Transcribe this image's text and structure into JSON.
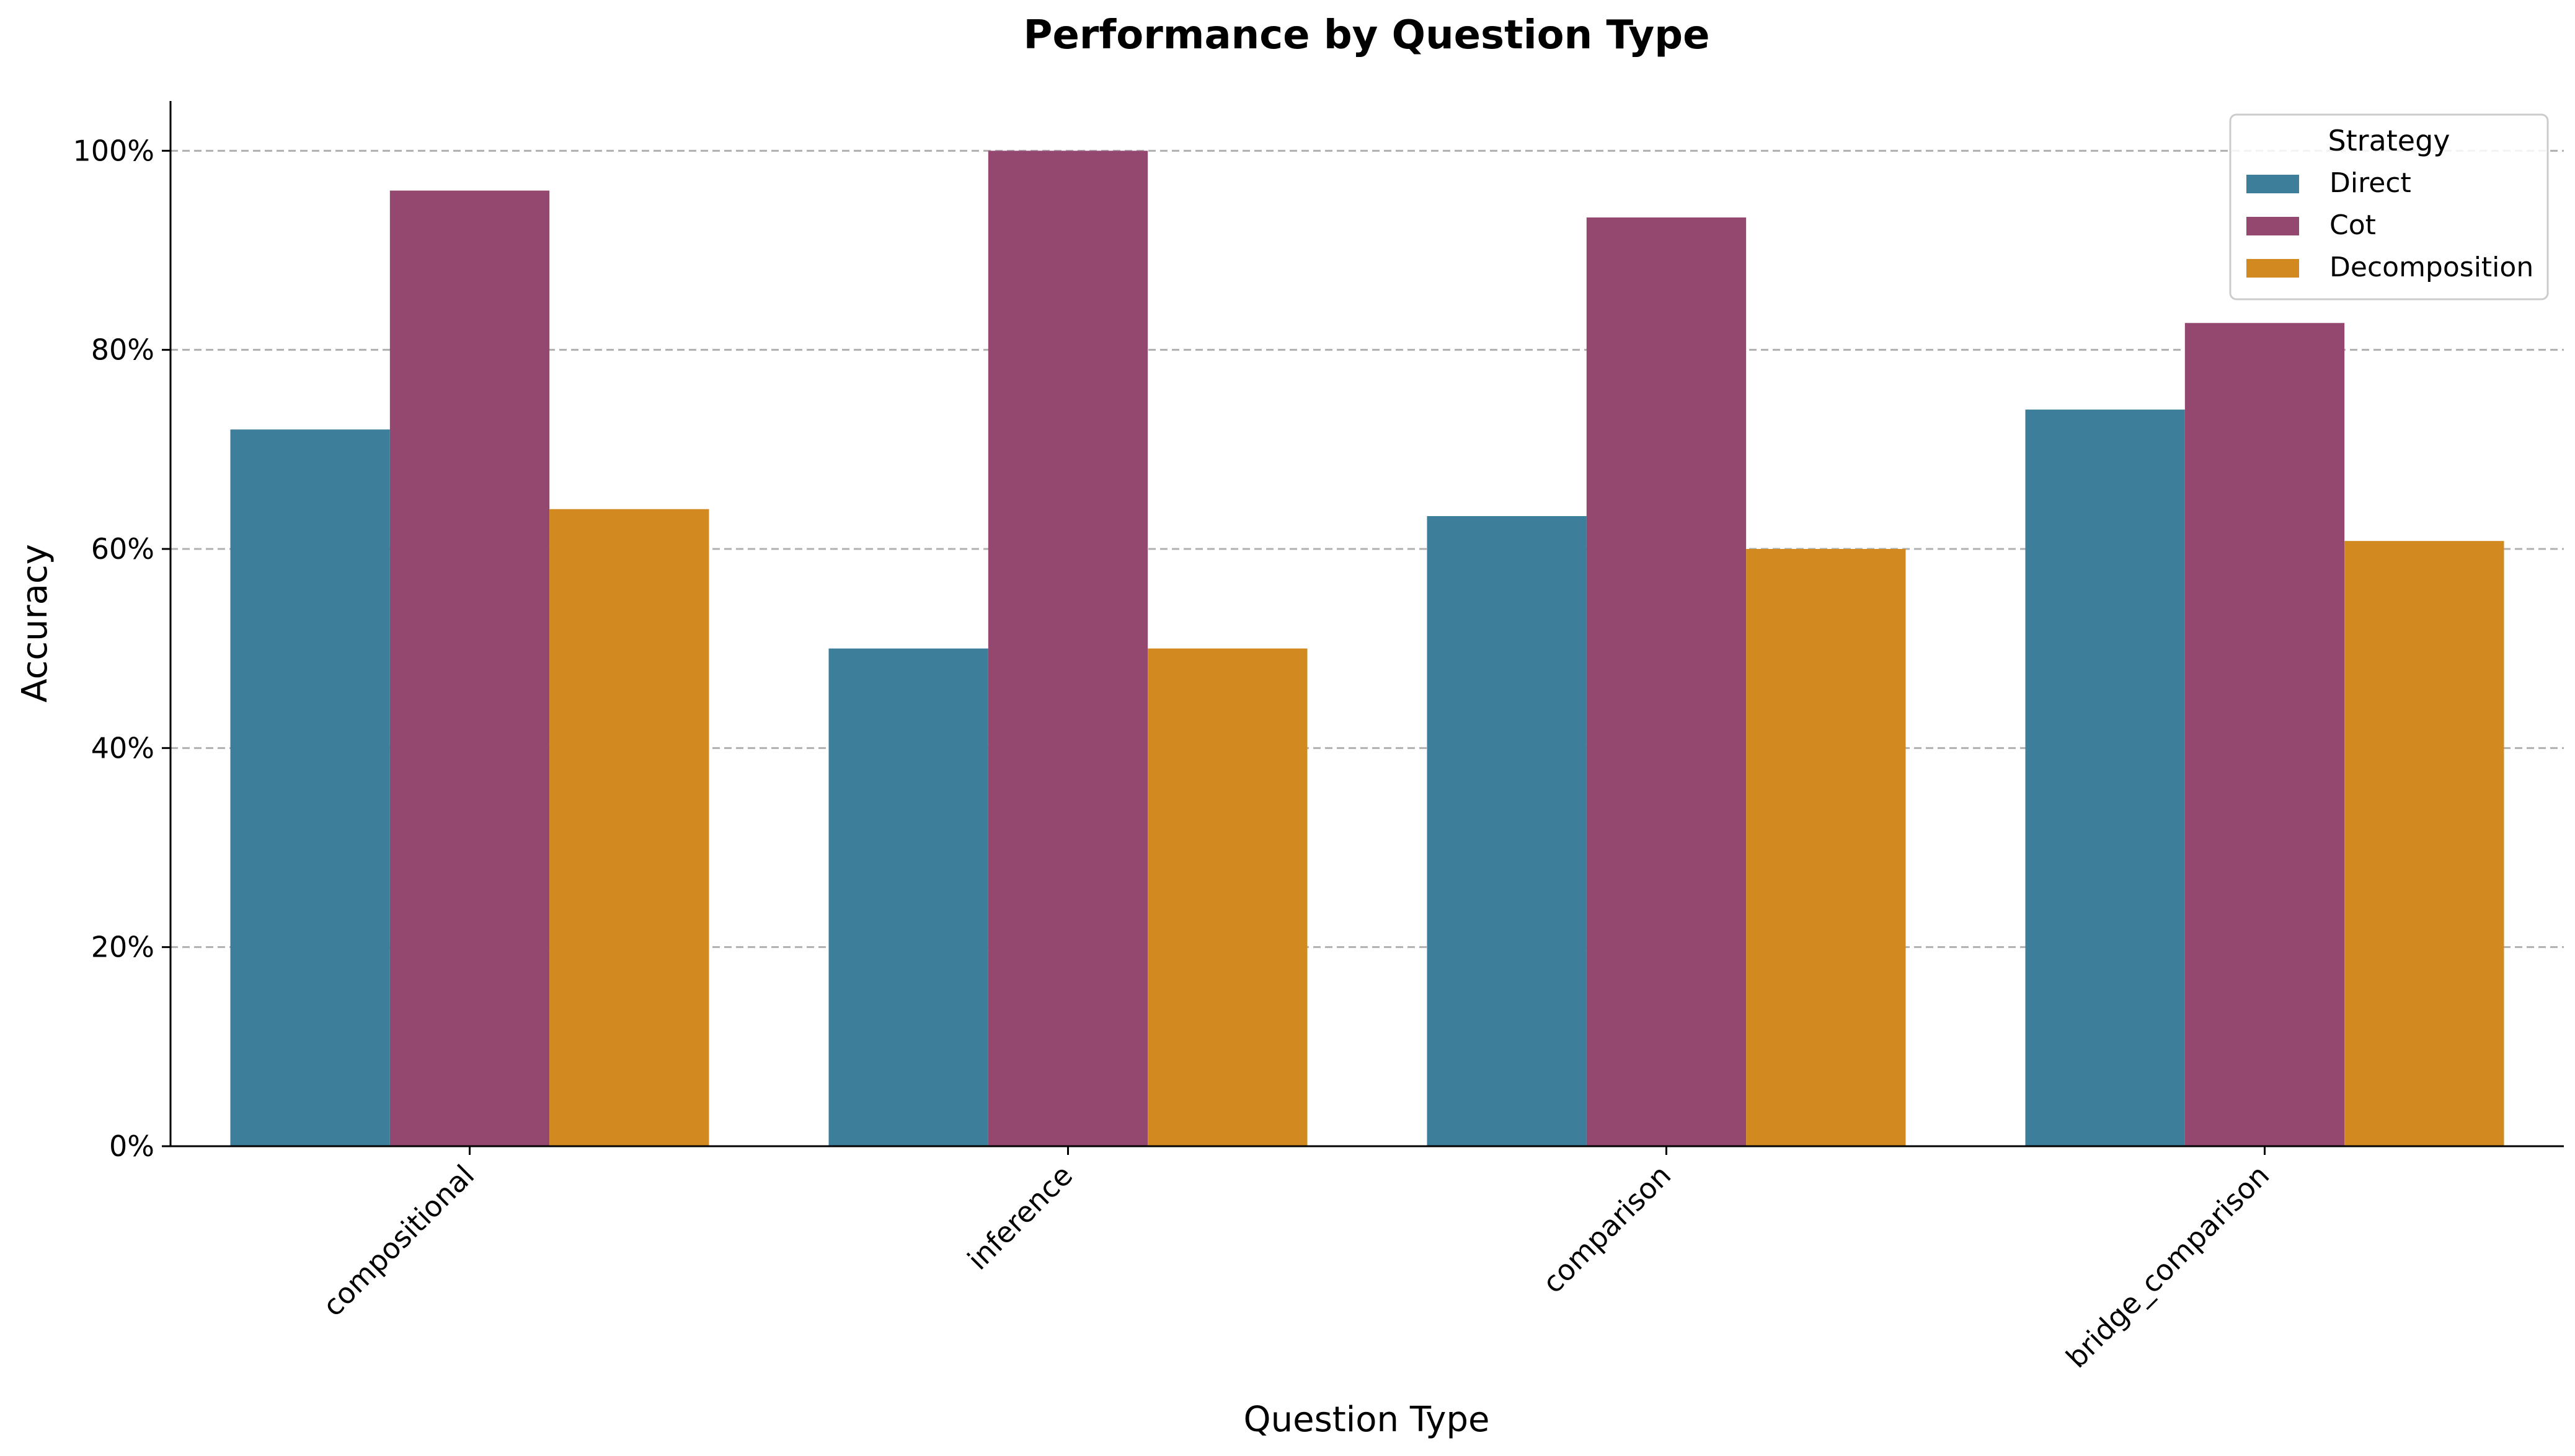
{
  "chart_data": {
    "type": "bar",
    "title": "Performance by Question Type",
    "xlabel": "Question Type",
    "ylabel": "Accuracy",
    "categories": [
      "compositional",
      "inference",
      "comparison",
      "bridge_comparison"
    ],
    "series": [
      {
        "name": "Direct",
        "color": "#3d7e9a",
        "values": [
          0.72,
          0.5,
          0.633,
          0.74
        ]
      },
      {
        "name": "Cot",
        "color": "#944870",
        "values": [
          0.96,
          1.0,
          0.933,
          0.827
        ]
      },
      {
        "name": "Decomposition",
        "color": "#d2891f",
        "values": [
          0.64,
          0.5,
          0.6,
          0.608
        ]
      }
    ],
    "ylim": [
      0,
      1.05
    ],
    "yticks": [
      0,
      0.2,
      0.4,
      0.6,
      0.8,
      1.0
    ],
    "ytick_labels": [
      "0%",
      "20%",
      "40%",
      "60%",
      "80%",
      "100%"
    ],
    "y_format": "percent",
    "grid": {
      "axis": "y",
      "style": "dashed",
      "color": "#b0b0b0"
    },
    "legend": {
      "title": "Strategy",
      "position": "top-right"
    }
  }
}
